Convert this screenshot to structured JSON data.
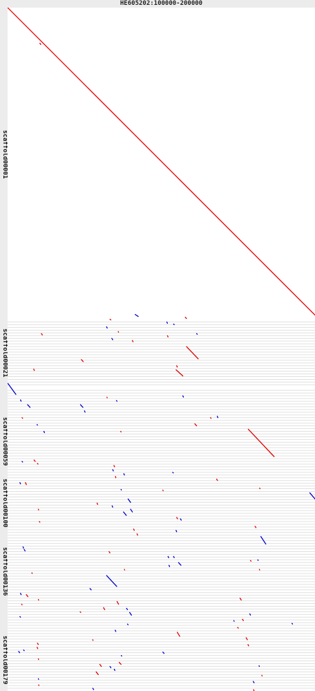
{
  "title": "HE605202:100000-200000",
  "chart_data": {
    "type": "scatter",
    "title": "HE605202:100000-200000",
    "x_axis": {
      "label": "HE605202:100000-200000",
      "range": [
        100000,
        200000
      ]
    },
    "y_axis": {
      "labels": [
        "scaffold00001",
        "scaffold00021",
        "scaffold00059",
        "scaffold00100",
        "scaffold00136",
        "scaffold00179"
      ],
      "label_positions": [
        0.22,
        0.51,
        0.64,
        0.73,
        0.83,
        0.96
      ],
      "range": [
        0,
        1
      ]
    },
    "colors": {
      "forward": "#dd0000",
      "reverse": "#0000cc",
      "grid": "#e0e0e0"
    },
    "grid_lines": [
      0.46,
      0.464,
      0.468,
      0.472,
      0.476,
      0.48,
      0.484,
      0.488,
      0.492,
      0.496,
      0.5,
      0.504,
      0.508,
      0.512,
      0.516,
      0.52,
      0.524,
      0.528,
      0.532,
      0.536,
      0.54,
      0.544,
      0.548,
      0.552,
      0.56,
      0.564,
      0.568,
      0.572,
      0.576,
      0.58,
      0.584,
      0.588,
      0.592,
      0.596,
      0.6,
      0.604,
      0.608,
      0.612,
      0.616,
      0.62,
      0.624,
      0.628,
      0.632,
      0.636,
      0.64,
      0.644,
      0.648,
      0.652,
      0.656,
      0.66,
      0.664,
      0.668,
      0.672,
      0.676,
      0.68,
      0.684,
      0.688,
      0.692,
      0.696,
      0.7,
      0.704,
      0.708,
      0.712,
      0.716,
      0.72,
      0.724,
      0.728,
      0.732,
      0.736,
      0.74,
      0.744,
      0.748,
      0.752,
      0.756,
      0.76,
      0.764,
      0.768,
      0.772,
      0.776,
      0.78,
      0.784,
      0.788,
      0.792,
      0.796,
      0.8,
      0.804,
      0.808,
      0.812,
      0.816,
      0.82,
      0.824,
      0.828,
      0.832,
      0.836,
      0.84,
      0.844,
      0.848,
      0.852,
      0.856,
      0.86,
      0.864,
      0.868,
      0.872,
      0.876,
      0.88,
      0.884,
      0.888,
      0.892,
      0.896,
      0.9,
      0.904,
      0.908,
      0.912,
      0.916,
      0.92,
      0.924,
      0.928,
      0.932,
      0.936,
      0.94,
      0.944,
      0.948,
      0.952,
      0.956,
      0.96,
      0.964,
      0.968,
      0.972,
      0.976,
      0.98,
      0.984,
      0.988,
      0.992,
      0.996
    ],
    "segments": [
      {
        "x1": 100000,
        "y1": 0.0,
        "x2": 200000,
        "y2": 0.45,
        "strand": "+"
      },
      {
        "x1": 110500,
        "y1": 0.052,
        "x2": 110800,
        "y2": 0.054,
        "strand": "+"
      },
      {
        "x1": 141500,
        "y1": 0.449,
        "x2": 142500,
        "y2": 0.452,
        "strand": "-"
      },
      {
        "x1": 133300,
        "y1": 0.456,
        "x2": 133600,
        "y2": 0.457,
        "strand": "+"
      },
      {
        "x1": 157800,
        "y1": 0.453,
        "x2": 158200,
        "y2": 0.455,
        "strand": "+"
      },
      {
        "x1": 151800,
        "y1": 0.46,
        "x2": 152000,
        "y2": 0.462,
        "strand": "-"
      },
      {
        "x1": 154000,
        "y1": 0.463,
        "x2": 154200,
        "y2": 0.464,
        "strand": "-"
      },
      {
        "x1": 132200,
        "y1": 0.467,
        "x2": 132400,
        "y2": 0.469,
        "strand": "-"
      },
      {
        "x1": 161500,
        "y1": 0.477,
        "x2": 161700,
        "y2": 0.478,
        "strand": "-"
      },
      {
        "x1": 111000,
        "y1": 0.477,
        "x2": 111300,
        "y2": 0.479,
        "strand": "+"
      },
      {
        "x1": 136000,
        "y1": 0.474,
        "x2": 136100,
        "y2": 0.475,
        "strand": "+"
      },
      {
        "x1": 133900,
        "y1": 0.484,
        "x2": 134200,
        "y2": 0.486,
        "strand": "-"
      },
      {
        "x1": 152000,
        "y1": 0.48,
        "x2": 152200,
        "y2": 0.482,
        "strand": "+"
      },
      {
        "x1": 140600,
        "y1": 0.487,
        "x2": 140800,
        "y2": 0.489,
        "strand": "+"
      },
      {
        "x1": 158200,
        "y1": 0.496,
        "x2": 162000,
        "y2": 0.514,
        "strand": "+"
      },
      {
        "x1": 124000,
        "y1": 0.515,
        "x2": 124600,
        "y2": 0.518,
        "strand": "+"
      },
      {
        "x1": 154800,
        "y1": 0.53,
        "x2": 157000,
        "y2": 0.539,
        "strand": "+"
      },
      {
        "x1": 155000,
        "y1": 0.524,
        "x2": 155200,
        "y2": 0.526,
        "strand": "+"
      },
      {
        "x1": 100100,
        "y1": 0.55,
        "x2": 102700,
        "y2": 0.566,
        "strand": "-"
      },
      {
        "x1": 108500,
        "y1": 0.529,
        "x2": 108700,
        "y2": 0.531,
        "strand": "+"
      },
      {
        "x1": 157000,
        "y1": 0.568,
        "x2": 157200,
        "y2": 0.57,
        "strand": "-"
      },
      {
        "x1": 104200,
        "y1": 0.574,
        "x2": 104400,
        "y2": 0.576,
        "strand": "-"
      },
      {
        "x1": 106500,
        "y1": 0.581,
        "x2": 107300,
        "y2": 0.585,
        "strand": "-"
      },
      {
        "x1": 123700,
        "y1": 0.581,
        "x2": 124500,
        "y2": 0.585,
        "strand": "-"
      },
      {
        "x1": 132300,
        "y1": 0.57,
        "x2": 132400,
        "y2": 0.571,
        "strand": "+"
      },
      {
        "x1": 135400,
        "y1": 0.575,
        "x2": 135600,
        "y2": 0.576,
        "strand": "-"
      },
      {
        "x1": 125000,
        "y1": 0.59,
        "x2": 125200,
        "y2": 0.592,
        "strand": "-"
      },
      {
        "x1": 104700,
        "y1": 0.6,
        "x2": 104900,
        "y2": 0.601,
        "strand": "+"
      },
      {
        "x1": 168200,
        "y1": 0.598,
        "x2": 168400,
        "y2": 0.6,
        "strand": "-"
      },
      {
        "x1": 178300,
        "y1": 0.617,
        "x2": 186700,
        "y2": 0.657,
        "strand": "+"
      },
      {
        "x1": 160900,
        "y1": 0.609,
        "x2": 161500,
        "y2": 0.612,
        "strand": "+"
      },
      {
        "x1": 109600,
        "y1": 0.61,
        "x2": 109700,
        "y2": 0.611,
        "strand": "-"
      },
      {
        "x1": 166000,
        "y1": 0.6,
        "x2": 166200,
        "y2": 0.601,
        "strand": "+"
      },
      {
        "x1": 111800,
        "y1": 0.62,
        "x2": 112000,
        "y2": 0.622,
        "strand": "-"
      },
      {
        "x1": 136800,
        "y1": 0.62,
        "x2": 136900,
        "y2": 0.621,
        "strand": "+"
      },
      {
        "x1": 108600,
        "y1": 0.662,
        "x2": 109000,
        "y2": 0.664,
        "strand": "+"
      },
      {
        "x1": 104700,
        "y1": 0.664,
        "x2": 104900,
        "y2": 0.665,
        "strand": "-"
      },
      {
        "x1": 109700,
        "y1": 0.667,
        "x2": 109900,
        "y2": 0.668,
        "strand": "+"
      },
      {
        "x1": 134600,
        "y1": 0.67,
        "x2": 134800,
        "y2": 0.672,
        "strand": "+"
      },
      {
        "x1": 134200,
        "y1": 0.676,
        "x2": 134400,
        "y2": 0.678,
        "strand": "-"
      },
      {
        "x1": 153700,
        "y1": 0.68,
        "x2": 153900,
        "y2": 0.681,
        "strand": "-"
      },
      {
        "x1": 137800,
        "y1": 0.682,
        "x2": 138000,
        "y2": 0.684,
        "strand": "-"
      },
      {
        "x1": 135100,
        "y1": 0.686,
        "x2": 135200,
        "y2": 0.688,
        "strand": "+"
      },
      {
        "x1": 104000,
        "y1": 0.695,
        "x2": 104200,
        "y2": 0.697,
        "strand": "-"
      },
      {
        "x1": 105800,
        "y1": 0.695,
        "x2": 106100,
        "y2": 0.698,
        "strand": "+"
      },
      {
        "x1": 136900,
        "y1": 0.705,
        "x2": 137000,
        "y2": 0.706,
        "strand": "-"
      },
      {
        "x1": 168000,
        "y1": 0.69,
        "x2": 168300,
        "y2": 0.692,
        "strand": "+"
      },
      {
        "x1": 150500,
        "y1": 0.706,
        "x2": 150600,
        "y2": 0.707,
        "strand": "+"
      },
      {
        "x1": 182000,
        "y1": 0.703,
        "x2": 182100,
        "y2": 0.704,
        "strand": "+"
      },
      {
        "x1": 198300,
        "y1": 0.71,
        "x2": 200000,
        "y2": 0.719,
        "strand": "-"
      },
      {
        "x1": 139200,
        "y1": 0.719,
        "x2": 140000,
        "y2": 0.724,
        "strand": "-"
      },
      {
        "x1": 129100,
        "y1": 0.725,
        "x2": 129300,
        "y2": 0.727,
        "strand": "+"
      },
      {
        "x1": 134000,
        "y1": 0.729,
        "x2": 134200,
        "y2": 0.731,
        "strand": "-"
      },
      {
        "x1": 110000,
        "y1": 0.734,
        "x2": 110100,
        "y2": 0.735,
        "strand": "+"
      },
      {
        "x1": 140000,
        "y1": 0.734,
        "x2": 140600,
        "y2": 0.738,
        "strand": "-"
      },
      {
        "x1": 137700,
        "y1": 0.738,
        "x2": 138600,
        "y2": 0.743,
        "strand": "-"
      },
      {
        "x1": 155000,
        "y1": 0.746,
        "x2": 155300,
        "y2": 0.748,
        "strand": "+"
      },
      {
        "x1": 156200,
        "y1": 0.748,
        "x2": 156500,
        "y2": 0.75,
        "strand": "-"
      },
      {
        "x1": 110300,
        "y1": 0.752,
        "x2": 110500,
        "y2": 0.753,
        "strand": "+"
      },
      {
        "x1": 180500,
        "y1": 0.759,
        "x2": 180800,
        "y2": 0.761,
        "strand": "+"
      },
      {
        "x1": 141000,
        "y1": 0.763,
        "x2": 141200,
        "y2": 0.765,
        "strand": "+"
      },
      {
        "x1": 142100,
        "y1": 0.77,
        "x2": 142300,
        "y2": 0.772,
        "strand": "+"
      },
      {
        "x1": 154800,
        "y1": 0.765,
        "x2": 155000,
        "y2": 0.767,
        "strand": "-"
      },
      {
        "x1": 182400,
        "y1": 0.774,
        "x2": 184000,
        "y2": 0.785,
        "strand": "-"
      },
      {
        "x1": 105000,
        "y1": 0.789,
        "x2": 105200,
        "y2": 0.791,
        "strand": "-"
      },
      {
        "x1": 105400,
        "y1": 0.793,
        "x2": 105700,
        "y2": 0.795,
        "strand": "-"
      },
      {
        "x1": 133000,
        "y1": 0.796,
        "x2": 133300,
        "y2": 0.798,
        "strand": "+"
      },
      {
        "x1": 154000,
        "y1": 0.803,
        "x2": 154200,
        "y2": 0.805,
        "strand": "-"
      },
      {
        "x1": 152200,
        "y1": 0.803,
        "x2": 152400,
        "y2": 0.805,
        "strand": "-"
      },
      {
        "x1": 155600,
        "y1": 0.812,
        "x2": 156400,
        "y2": 0.816,
        "strand": "-"
      },
      {
        "x1": 181400,
        "y1": 0.808,
        "x2": 181500,
        "y2": 0.809,
        "strand": "-"
      },
      {
        "x1": 152500,
        "y1": 0.816,
        "x2": 152700,
        "y2": 0.818,
        "strand": "-"
      },
      {
        "x1": 138000,
        "y1": 0.822,
        "x2": 138100,
        "y2": 0.823,
        "strand": "+"
      },
      {
        "x1": 179000,
        "y1": 0.809,
        "x2": 179200,
        "y2": 0.81,
        "strand": "+"
      },
      {
        "x1": 181900,
        "y1": 0.822,
        "x2": 182000,
        "y2": 0.823,
        "strand": "+"
      },
      {
        "x1": 107900,
        "y1": 0.827,
        "x2": 108000,
        "y2": 0.828,
        "strand": "+"
      },
      {
        "x1": 132200,
        "y1": 0.831,
        "x2": 135500,
        "y2": 0.847,
        "strand": "-"
      },
      {
        "x1": 126800,
        "y1": 0.85,
        "x2": 127200,
        "y2": 0.852,
        "strand": "-"
      },
      {
        "x1": 104200,
        "y1": 0.857,
        "x2": 104400,
        "y2": 0.859,
        "strand": "-"
      },
      {
        "x1": 106100,
        "y1": 0.859,
        "x2": 106600,
        "y2": 0.862,
        "strand": "+"
      },
      {
        "x1": 104600,
        "y1": 0.873,
        "x2": 104700,
        "y2": 0.874,
        "strand": "+"
      },
      {
        "x1": 110000,
        "y1": 0.866,
        "x2": 110100,
        "y2": 0.867,
        "strand": "+"
      },
      {
        "x1": 135600,
        "y1": 0.869,
        "x2": 136100,
        "y2": 0.873,
        "strand": "+"
      },
      {
        "x1": 175600,
        "y1": 0.864,
        "x2": 176000,
        "y2": 0.867,
        "strand": "+"
      },
      {
        "x1": 131200,
        "y1": 0.878,
        "x2": 131600,
        "y2": 0.881,
        "strand": "+"
      },
      {
        "x1": 138700,
        "y1": 0.879,
        "x2": 139000,
        "y2": 0.881,
        "strand": "-"
      },
      {
        "x1": 123600,
        "y1": 0.884,
        "x2": 123800,
        "y2": 0.885,
        "strand": "+"
      },
      {
        "x1": 139700,
        "y1": 0.885,
        "x2": 140300,
        "y2": 0.889,
        "strand": "-"
      },
      {
        "x1": 178800,
        "y1": 0.887,
        "x2": 179000,
        "y2": 0.889,
        "strand": "-"
      },
      {
        "x1": 104000,
        "y1": 0.891,
        "x2": 104200,
        "y2": 0.892,
        "strand": "-"
      },
      {
        "x1": 176400,
        "y1": 0.895,
        "x2": 176700,
        "y2": 0.897,
        "strand": "+"
      },
      {
        "x1": 173600,
        "y1": 0.897,
        "x2": 173700,
        "y2": 0.898,
        "strand": "-"
      },
      {
        "x1": 139000,
        "y1": 0.902,
        "x2": 139200,
        "y2": 0.903,
        "strand": "-"
      },
      {
        "x1": 192500,
        "y1": 0.901,
        "x2": 192700,
        "y2": 0.902,
        "strand": "-"
      },
      {
        "x1": 174800,
        "y1": 0.907,
        "x2": 175100,
        "y2": 0.908,
        "strand": "+"
      },
      {
        "x1": 135000,
        "y1": 0.911,
        "x2": 135200,
        "y2": 0.913,
        "strand": "-"
      },
      {
        "x1": 155200,
        "y1": 0.914,
        "x2": 156000,
        "y2": 0.92,
        "strand": "+"
      },
      {
        "x1": 177600,
        "y1": 0.922,
        "x2": 178000,
        "y2": 0.925,
        "strand": "+"
      },
      {
        "x1": 127700,
        "y1": 0.925,
        "x2": 127800,
        "y2": 0.926,
        "strand": "+"
      },
      {
        "x1": 109700,
        "y1": 0.93,
        "x2": 110000,
        "y2": 0.932,
        "strand": "+"
      },
      {
        "x1": 178200,
        "y1": 0.932,
        "x2": 178400,
        "y2": 0.934,
        "strand": "+"
      },
      {
        "x1": 109600,
        "y1": 0.936,
        "x2": 109800,
        "y2": 0.938,
        "strand": "+"
      },
      {
        "x1": 105200,
        "y1": 0.94,
        "x2": 105400,
        "y2": 0.941,
        "strand": "-"
      },
      {
        "x1": 103600,
        "y1": 0.942,
        "x2": 103900,
        "y2": 0.944,
        "strand": "-"
      },
      {
        "x1": 150500,
        "y1": 0.943,
        "x2": 150900,
        "y2": 0.945,
        "strand": "-"
      },
      {
        "x1": 137000,
        "y1": 0.948,
        "x2": 137100,
        "y2": 0.949,
        "strand": "-"
      },
      {
        "x1": 110000,
        "y1": 0.953,
        "x2": 110100,
        "y2": 0.954,
        "strand": "+"
      },
      {
        "x1": 130000,
        "y1": 0.961,
        "x2": 130500,
        "y2": 0.964,
        "strand": "+"
      },
      {
        "x1": 136300,
        "y1": 0.958,
        "x2": 136900,
        "y2": 0.961,
        "strand": "+"
      },
      {
        "x1": 133300,
        "y1": 0.964,
        "x2": 133600,
        "y2": 0.966,
        "strand": "-"
      },
      {
        "x1": 181800,
        "y1": 0.963,
        "x2": 181900,
        "y2": 0.964,
        "strand": "-"
      },
      {
        "x1": 134700,
        "y1": 0.968,
        "x2": 134900,
        "y2": 0.97,
        "strand": "-"
      },
      {
        "x1": 128800,
        "y1": 0.972,
        "x2": 129500,
        "y2": 0.976,
        "strand": "+"
      },
      {
        "x1": 182700,
        "y1": 0.977,
        "x2": 182800,
        "y2": 0.978,
        "strand": "+"
      },
      {
        "x1": 110000,
        "y1": 0.982,
        "x2": 110100,
        "y2": 0.983,
        "strand": "-"
      },
      {
        "x1": 179900,
        "y1": 0.986,
        "x2": 180200,
        "y2": 0.988,
        "strand": "-"
      },
      {
        "x1": 110100,
        "y1": 0.991,
        "x2": 110200,
        "y2": 0.992,
        "strand": "+"
      },
      {
        "x1": 127700,
        "y1": 0.996,
        "x2": 128000,
        "y2": 0.998,
        "strand": "-"
      },
      {
        "x1": 180000,
        "y1": 0.998,
        "x2": 180200,
        "y2": 1.0,
        "strand": "+"
      }
    ]
  }
}
